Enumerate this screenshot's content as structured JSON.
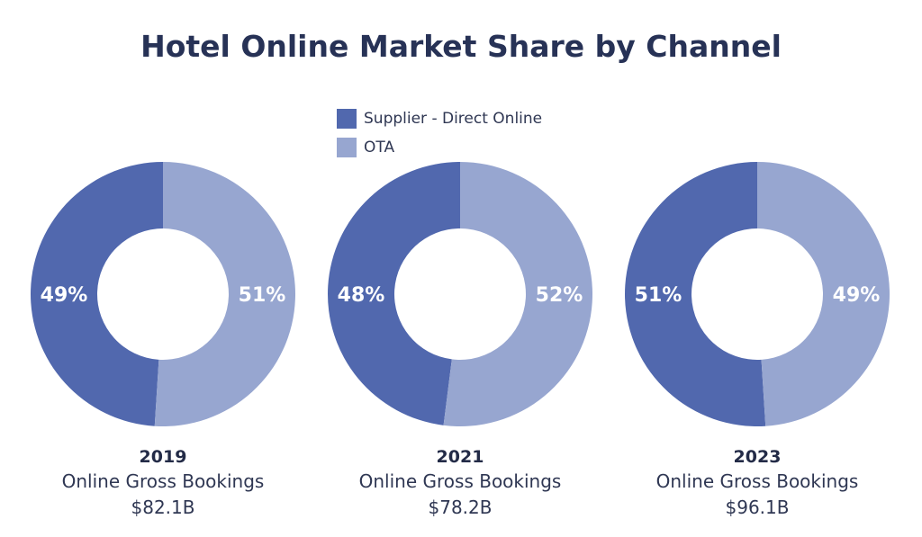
{
  "chart_data": {
    "type": "pie",
    "variant": "donut",
    "title": "Hotel Online Market Share by Channel",
    "legend_placement": "top-center",
    "series_names": [
      "Supplier - Direct Online",
      "OTA"
    ],
    "colors": [
      "#5168ae",
      "#97a6d0"
    ],
    "charts": [
      {
        "year": "2019",
        "caption": "Online Gross Bookings",
        "total": "$82.1B",
        "values": [
          49,
          51
        ],
        "labels": [
          "49%",
          "51%"
        ]
      },
      {
        "year": "2021",
        "caption": "Online Gross Bookings",
        "total": "$78.2B",
        "values": [
          48,
          52
        ],
        "labels": [
          "48%",
          "52%"
        ]
      },
      {
        "year": "2023",
        "caption": "Online Gross Bookings",
        "total": "$96.1B",
        "values": [
          51,
          49
        ],
        "labels": [
          "51%",
          "49%"
        ]
      }
    ]
  }
}
